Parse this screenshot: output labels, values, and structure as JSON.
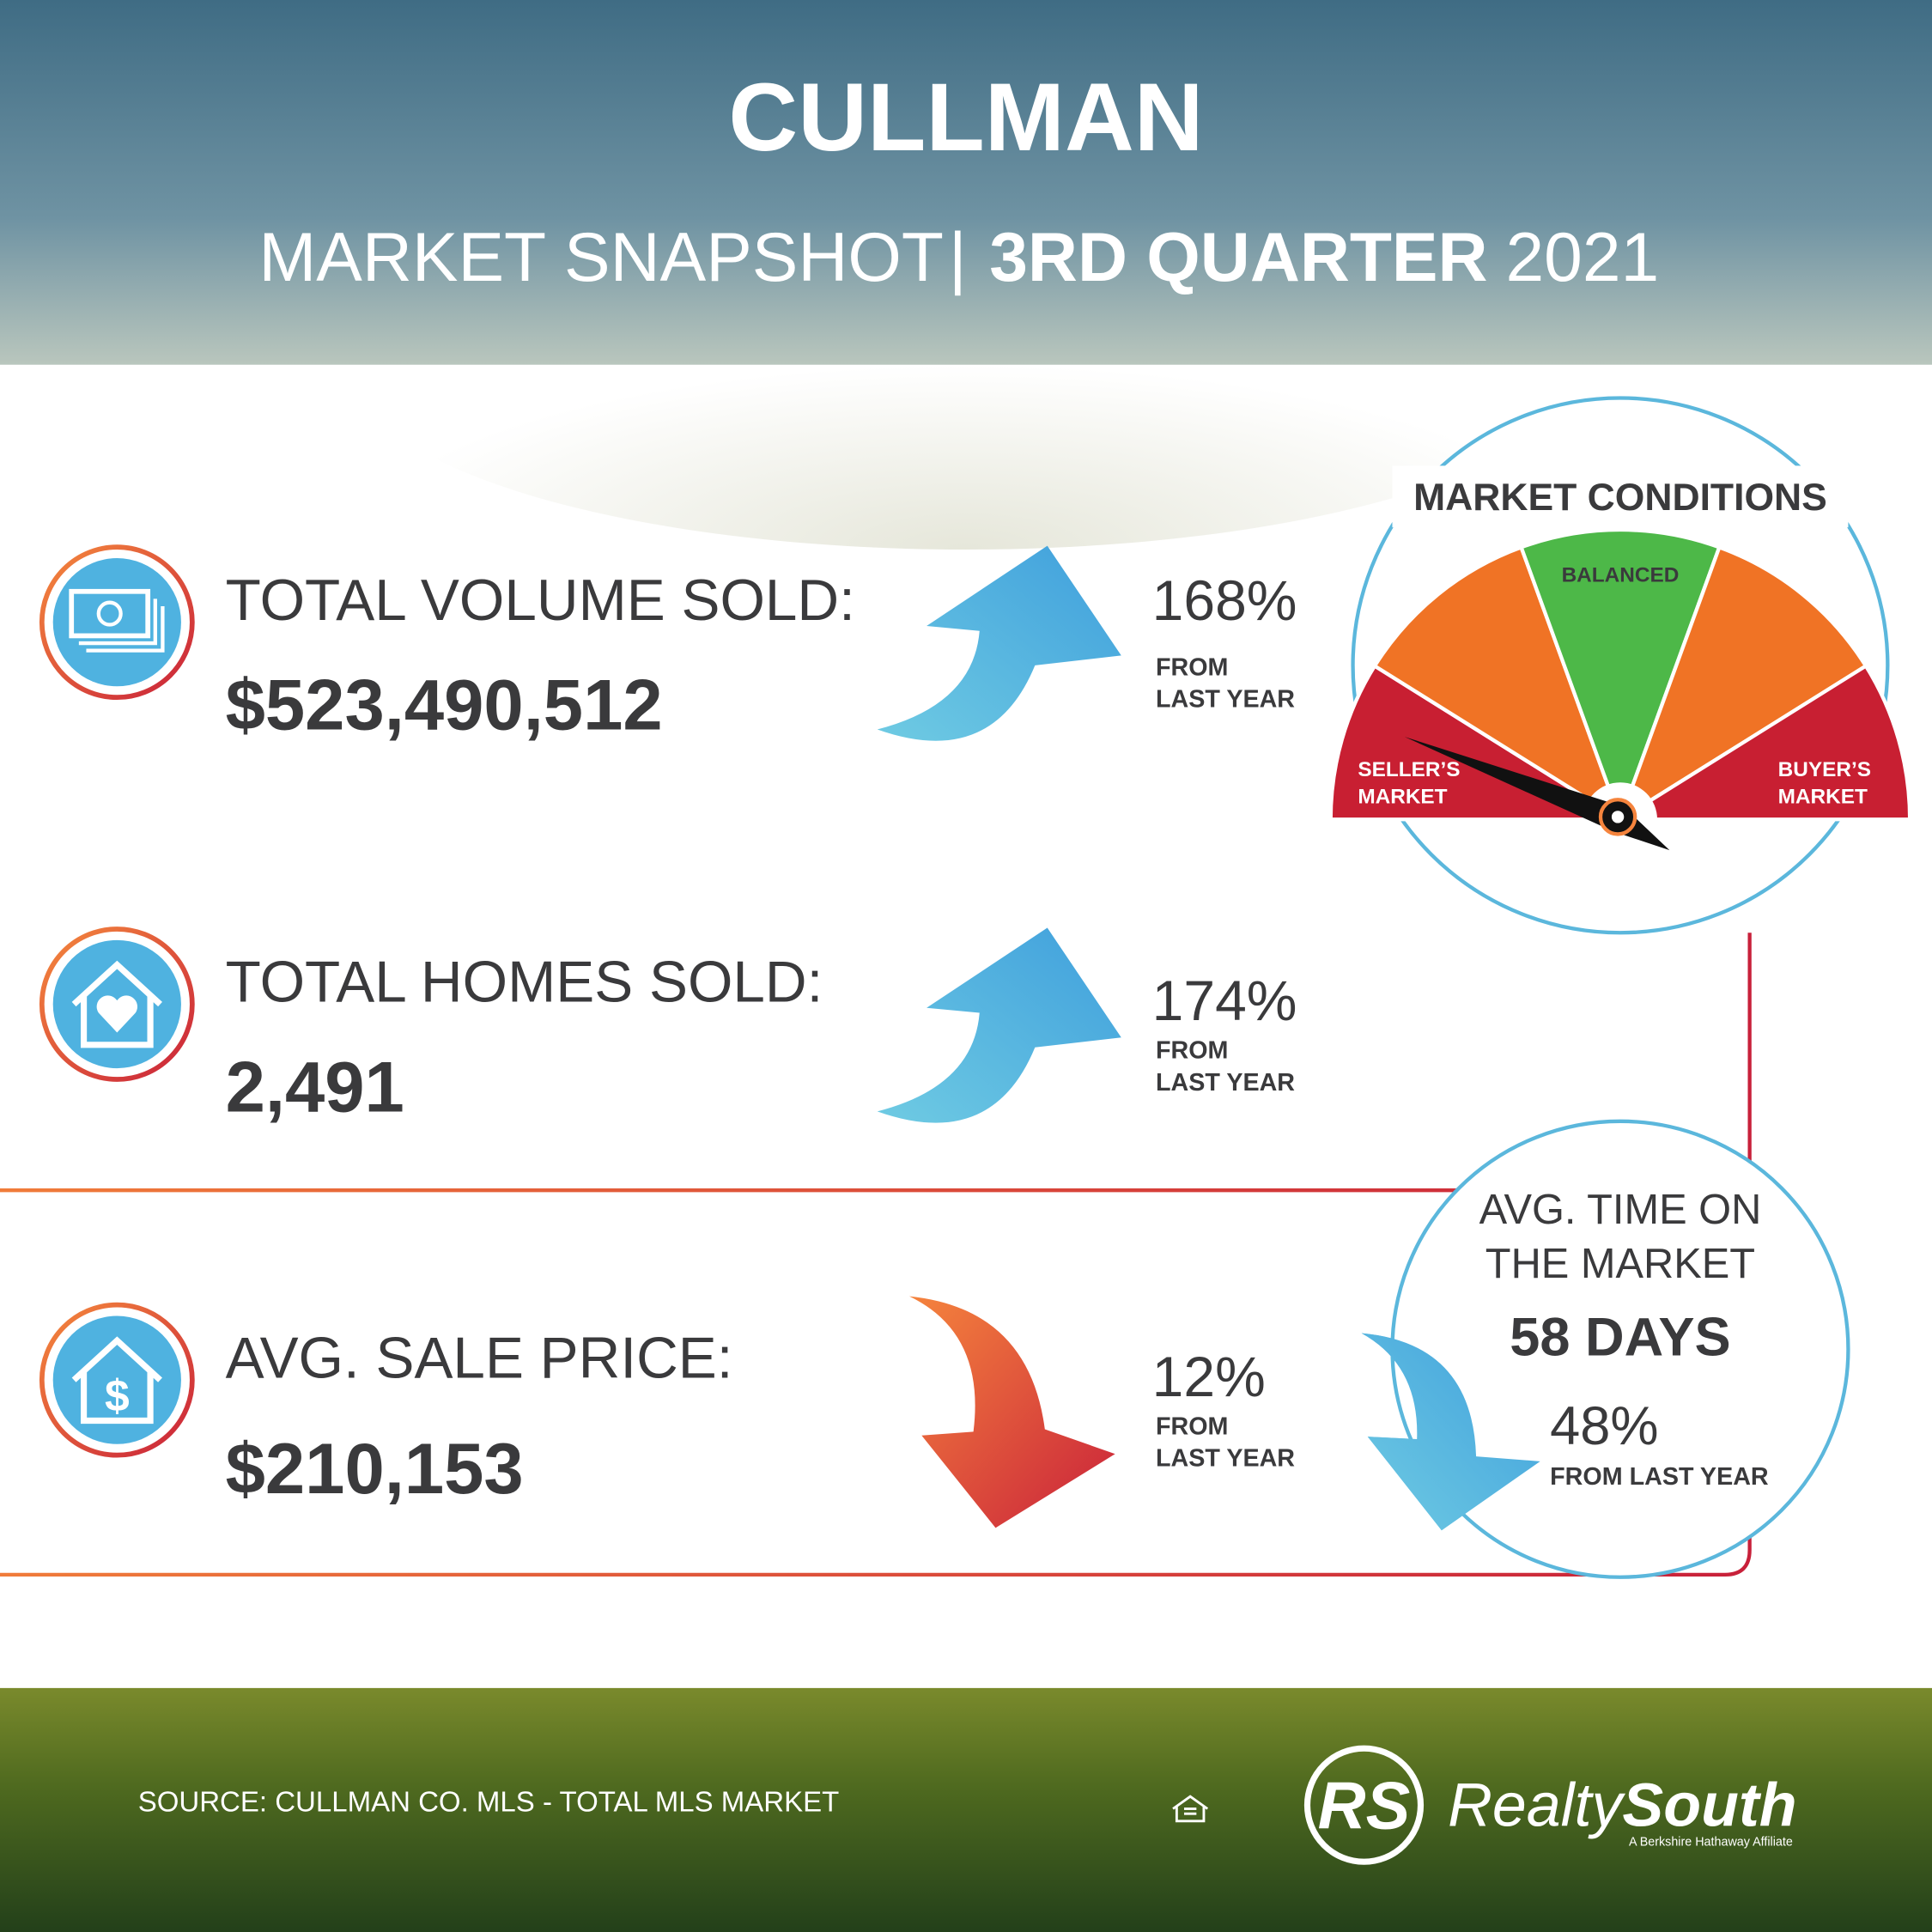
{
  "header": {
    "title": "CULLMAN",
    "subtitle": [
      "MARKET SNAPSHOT",
      "|",
      "3RD QUARTER",
      "2021"
    ]
  },
  "stats": [
    {
      "label": "TOTAL VOLUME SOLD:",
      "value": "$523,490,512",
      "change": "168%",
      "note": [
        "FROM",
        "LAST YEAR"
      ]
    },
    {
      "label": "TOTAL HOMES SOLD:",
      "value": "2,491",
      "change": "174%",
      "note": [
        "FROM",
        "LAST YEAR"
      ]
    },
    {
      "label": "AVG. SALE PRICE:",
      "value": "$210,153",
      "change": "12%",
      "note": [
        "FROM",
        "LAST YEAR"
      ]
    }
  ],
  "market_conditions": {
    "title": "MARKET CONDITIONS",
    "balanced": "BALANCED",
    "sellers": [
      "SELLER’S",
      "MARKET"
    ],
    "buyers": [
      "BUYER’S",
      "MARKET"
    ]
  },
  "time_on_market": {
    "title": [
      "AVG. TIME ON",
      "THE MARKET"
    ],
    "value": "58 DAYS",
    "change": "48%",
    "note": "FROM LAST YEAR"
  },
  "footer": {
    "source": "SOURCE: CULLMAN CO. MLS - TOTAL MLS MARKET",
    "logo": "RS",
    "brand": [
      "Realty",
      "South"
    ],
    "tagline": "A Berkshire Hathaway Affiliate"
  }
}
